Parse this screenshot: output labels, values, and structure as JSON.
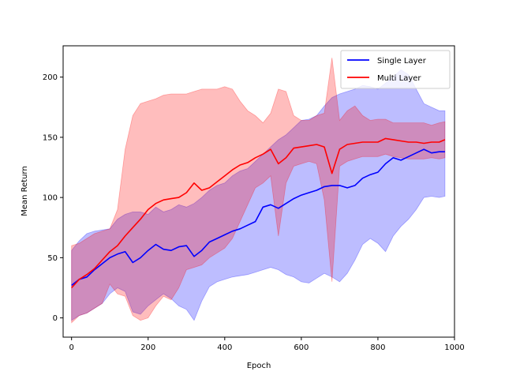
{
  "chart_data": {
    "type": "line",
    "title": "",
    "xlabel": "Epoch",
    "ylabel": "Mean Return",
    "xlim": [
      -22,
      1000
    ],
    "ylim": [
      -16,
      226
    ],
    "xticks": [
      0,
      200,
      400,
      600,
      800,
      1000
    ],
    "yticks": [
      0,
      50,
      100,
      150,
      200
    ],
    "grid": false,
    "legend_position": "top-right",
    "series": [
      {
        "name": "Single Layer",
        "color": "#0000ff",
        "band_color": "#0000ff",
        "x": [
          0,
          20,
          40,
          60,
          80,
          100,
          120,
          140,
          160,
          180,
          200,
          220,
          240,
          260,
          280,
          300,
          320,
          340,
          360,
          380,
          400,
          420,
          440,
          460,
          480,
          500,
          520,
          540,
          560,
          580,
          600,
          620,
          640,
          660,
          680,
          700,
          720,
          740,
          760,
          780,
          800,
          820,
          840,
          860,
          880,
          900,
          920,
          940,
          960,
          975
        ],
        "mean": [
          27,
          32,
          34,
          40,
          45,
          50,
          53,
          55,
          46,
          50,
          56,
          61,
          57,
          56,
          59,
          60,
          51,
          56,
          63,
          66,
          69,
          72,
          74,
          77,
          80,
          92,
          94,
          91,
          95,
          99,
          102,
          104,
          106,
          109,
          110,
          110,
          108,
          110,
          116,
          119,
          121,
          128,
          133,
          131,
          134,
          137,
          140,
          137,
          138,
          138
        ],
        "upper": [
          56,
          64,
          70,
          72,
          73,
          74,
          82,
          86,
          88,
          88,
          86,
          92,
          88,
          90,
          94,
          92,
          95,
          100,
          106,
          110,
          112,
          118,
          122,
          124,
          130,
          136,
          142,
          148,
          152,
          158,
          164,
          165,
          168,
          176,
          183,
          186,
          188,
          190,
          193,
          192,
          190,
          195,
          200,
          206,
          202,
          190,
          178,
          175,
          172,
          172
        ],
        "lower": [
          -2,
          2,
          4,
          8,
          12,
          20,
          25,
          22,
          5,
          3,
          10,
          15,
          20,
          16,
          10,
          7,
          -2,
          14,
          26,
          30,
          32,
          34,
          35,
          36,
          38,
          40,
          42,
          40,
          36,
          34,
          30,
          29,
          33,
          37,
          34,
          30,
          37,
          48,
          61,
          66,
          62,
          55,
          68,
          76,
          82,
          90,
          100,
          101,
          100,
          101
        ]
      },
      {
        "name": "Multi Layer",
        "color": "#ff0000",
        "band_color": "#ff0000",
        "x": [
          0,
          20,
          40,
          60,
          80,
          100,
          120,
          140,
          160,
          180,
          200,
          220,
          240,
          260,
          280,
          300,
          320,
          340,
          360,
          380,
          400,
          420,
          440,
          460,
          480,
          500,
          520,
          540,
          560,
          580,
          600,
          620,
          640,
          660,
          680,
          700,
          720,
          740,
          760,
          780,
          800,
          820,
          840,
          860,
          880,
          900,
          920,
          940,
          960,
          975
        ],
        "mean": [
          25,
          32,
          36,
          41,
          48,
          55,
          60,
          68,
          75,
          82,
          90,
          95,
          98,
          99,
          100,
          104,
          112,
          106,
          108,
          113,
          118,
          123,
          127,
          129,
          133,
          136,
          140,
          128,
          133,
          141,
          142,
          143,
          144,
          142,
          120,
          140,
          144,
          145,
          146,
          146,
          146,
          149,
          148,
          147,
          146,
          146,
          145,
          146,
          146,
          148
        ],
        "upper": [
          60,
          62,
          66,
          70,
          72,
          74,
          90,
          140,
          168,
          178,
          180,
          182,
          185,
          186,
          186,
          186,
          188,
          190,
          190,
          190,
          192,
          190,
          180,
          172,
          168,
          162,
          170,
          190,
          188,
          168,
          164,
          164,
          168,
          170,
          216,
          164,
          172,
          176,
          168,
          164,
          165,
          165,
          162,
          162,
          162,
          162,
          162,
          160,
          162,
          163
        ],
        "lower": [
          -4,
          2,
          4,
          8,
          12,
          28,
          20,
          18,
          2,
          -2,
          0,
          10,
          18,
          15,
          25,
          40,
          42,
          44,
          50,
          54,
          58,
          66,
          80,
          94,
          108,
          112,
          118,
          68,
          112,
          126,
          128,
          130,
          128,
          98,
          30,
          126,
          130,
          132,
          134,
          134,
          134,
          136,
          134,
          133,
          132,
          132,
          132,
          133,
          132,
          133
        ]
      }
    ]
  }
}
